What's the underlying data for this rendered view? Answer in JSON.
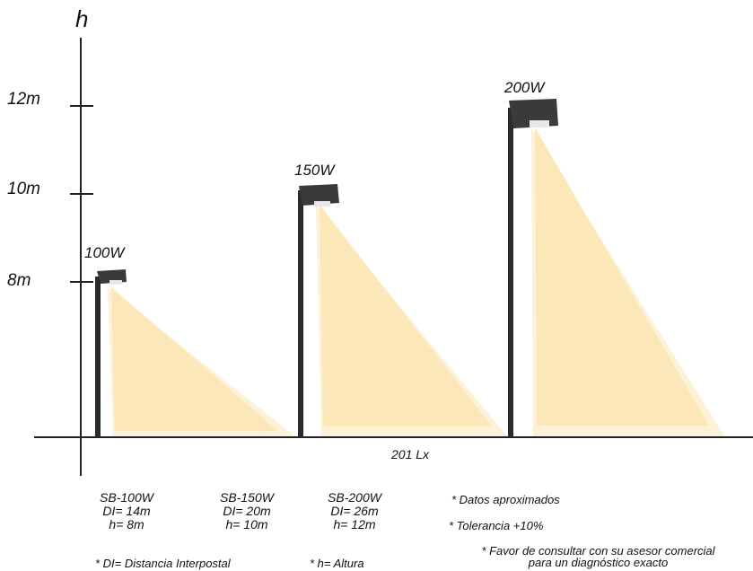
{
  "axis": {
    "y_label": "h"
  },
  "ticks": [
    {
      "label": "12m"
    },
    {
      "label": "10m"
    },
    {
      "label": "8m"
    }
  ],
  "lamps": [
    {
      "watt_label": "100W",
      "model": "SB-100W",
      "distance": "DI= 14m",
      "height": "h= 8m"
    },
    {
      "watt_label": "150W",
      "model": "SB-150W",
      "distance": "DI= 20m",
      "height": "h= 10m"
    },
    {
      "watt_label": "200W",
      "model": "SB-200W",
      "distance": "DI= 26m",
      "height": "h= 12m"
    }
  ],
  "lux_label": "201 Lx",
  "notes": {
    "di_def": "* DI= Distancia Interpostal",
    "h_def": "* h= Altura",
    "approx": "* Datos aproximados",
    "tolerance": "* Tolerancia +10%",
    "consult_line1": "* Favor de consultar con su asesor comercial",
    "consult_line2": "para un diagnóstico exacto"
  },
  "colors": {
    "light_outer": "#fdf2d8",
    "light_inner": "#fbe7b8",
    "pole": "#2a2a2a",
    "luminaire": "#3a3a3a"
  }
}
